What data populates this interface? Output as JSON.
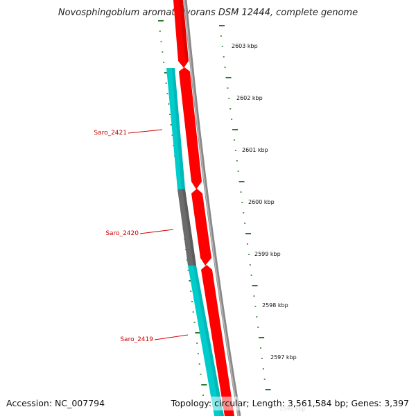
{
  "title": "Novosphingobium aromaticivorans DSM 12444, complete genome",
  "footer": {
    "accession": "Accession: NC_007794",
    "summary": "Topology: circular; Length: 3,561,584 bp; Genes: 3,397"
  },
  "scale": {
    "unit": "kbp",
    "ticks": [
      {
        "value": 2603,
        "label": "2603 kbp"
      },
      {
        "value": 2602,
        "label": "2602 kbp"
      },
      {
        "value": 2601,
        "label": "2601 kbp"
      },
      {
        "value": 2600,
        "label": "2600 kbp"
      },
      {
        "value": 2599,
        "label": "2599 kbp"
      },
      {
        "value": 2598,
        "label": "2598 kbp"
      },
      {
        "value": 2597,
        "label": "2597 kbp"
      },
      {
        "value": 2596,
        "label": "2596 kbp"
      }
    ]
  },
  "genes": [
    {
      "name": "Saro_2421"
    },
    {
      "name": "Saro_2420"
    },
    {
      "name": "Saro_2419"
    }
  ],
  "colors": {
    "cds_forward": "#ff0000",
    "cds_reverse": "#00cccc",
    "highlight": "#6b6b6b",
    "backbone": "#888888",
    "ticks": "#2a7a2a",
    "label": "#cc0000"
  }
}
